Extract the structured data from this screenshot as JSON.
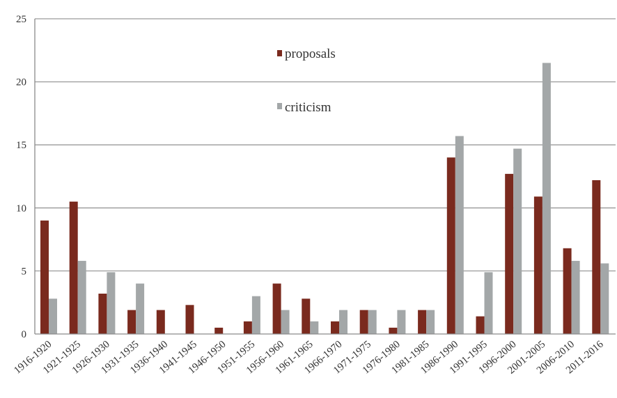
{
  "chart_data": {
    "type": "bar",
    "title": "",
    "xlabel": "",
    "ylabel": "",
    "ylim": [
      0,
      25
    ],
    "yticks": [
      0,
      5,
      10,
      15,
      20,
      25
    ],
    "grid": true,
    "legend_position": "top-center",
    "categories": [
      "1916-1920",
      "1921-1925",
      "1926-1930",
      "1931-1935",
      "1936-1940",
      "1941-1945",
      "1946-1950",
      "1951-1955",
      "1956-1960",
      "1961-1965",
      "1966-1970",
      "1971-1975",
      "1976-1980",
      "1981-1985",
      "1986-1990",
      "1991-1995",
      "1996-2000",
      "2001-2005",
      "2006-2010",
      "2011-2016"
    ],
    "series": [
      {
        "name": "proposals",
        "color": "#7a2a1e",
        "values": [
          9.0,
          10.5,
          3.2,
          1.9,
          1.9,
          2.3,
          0.5,
          1.0,
          4.0,
          2.8,
          1.0,
          1.9,
          0.5,
          1.9,
          14.0,
          1.4,
          12.7,
          10.9,
          6.8,
          12.2
        ]
      },
      {
        "name": "criticism",
        "color": "#a3a7a8",
        "values": [
          2.8,
          5.8,
          4.9,
          4.0,
          0,
          0,
          0,
          3.0,
          1.9,
          1.0,
          1.9,
          1.9,
          1.9,
          1.9,
          15.7,
          4.9,
          14.7,
          21.5,
          5.8,
          5.6
        ]
      }
    ]
  }
}
